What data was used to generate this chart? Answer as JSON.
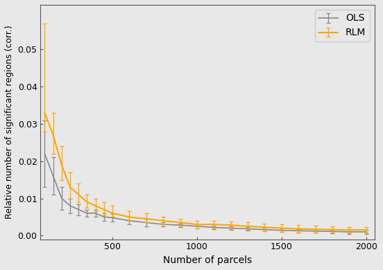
{
  "x_parcels": [
    100,
    150,
    200,
    250,
    300,
    350,
    400,
    450,
    500,
    600,
    700,
    800,
    900,
    1000,
    1100,
    1200,
    1300,
    1400,
    1500,
    1600,
    1700,
    1800,
    1900,
    2000
  ],
  "ols_mean": [
    0.022,
    0.016,
    0.01,
    0.008,
    0.007,
    0.006,
    0.006,
    0.005,
    0.0048,
    0.004,
    0.0035,
    0.003,
    0.0028,
    0.0025,
    0.0022,
    0.002,
    0.0018,
    0.0016,
    0.0014,
    0.0013,
    0.0012,
    0.0011,
    0.001,
    0.001
  ],
  "ols_err": [
    0.009,
    0.005,
    0.003,
    0.002,
    0.0015,
    0.001,
    0.001,
    0.001,
    0.001,
    0.001,
    0.001,
    0.0005,
    0.0005,
    0.0005,
    0.0005,
    0.0005,
    0.0005,
    0.0005,
    0.0005,
    0.0005,
    0.0005,
    0.0005,
    0.0005,
    0.0005
  ],
  "rlm_mean": [
    0.033,
    0.027,
    0.019,
    0.013,
    0.011,
    0.009,
    0.008,
    0.007,
    0.006,
    0.005,
    0.0045,
    0.004,
    0.0035,
    0.003,
    0.003,
    0.0028,
    0.0025,
    0.0022,
    0.002,
    0.0018,
    0.0017,
    0.0016,
    0.0015,
    0.0015
  ],
  "rlm_err_high": [
    0.024,
    0.006,
    0.005,
    0.004,
    0.003,
    0.002,
    0.002,
    0.002,
    0.002,
    0.0015,
    0.0015,
    0.001,
    0.001,
    0.001,
    0.001,
    0.001,
    0.001,
    0.001,
    0.001,
    0.001,
    0.001,
    0.0008,
    0.0008,
    0.0008
  ],
  "rlm_err_low": [
    0.005,
    0.005,
    0.004,
    0.003,
    0.002,
    0.0015,
    0.0015,
    0.0015,
    0.001,
    0.001,
    0.001,
    0.001,
    0.001,
    0.001,
    0.001,
    0.001,
    0.001,
    0.001,
    0.001,
    0.001,
    0.001,
    0.0008,
    0.0008,
    0.0008
  ],
  "ols_color": "#888888",
  "rlm_color": "#FFA500",
  "xlabel": "Number of parcels",
  "ylabel": "Relative number of significant regions (corr.)",
  "xlim": [
    75,
    2050
  ],
  "ylim": [
    -0.001,
    0.062
  ],
  "xticks": [
    500,
    1000,
    1500,
    2000
  ],
  "yticks": [
    0.0,
    0.01,
    0.02,
    0.03,
    0.04,
    0.05
  ],
  "legend_labels": [
    "OLS",
    "RLM"
  ],
  "bg_color": "#e8e8e8",
  "plot_bg_color": "#e8e8e8"
}
